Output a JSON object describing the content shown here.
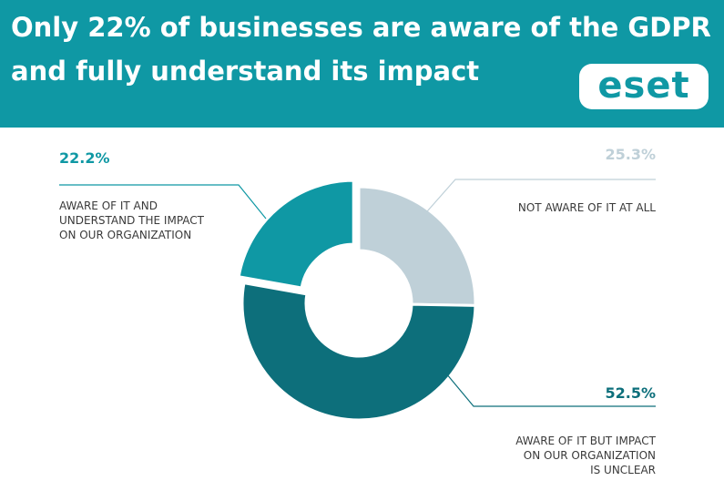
{
  "chart_data": {
    "type": "donut",
    "title": "Only 22% of businesses are aware of the GDPR\nand fully understand its impact",
    "logo": "eset",
    "categories": [
      "NOT AWARE OF IT AT ALL",
      "AWARE OF IT BUT IMPACT\nON OUR ORGANIZATION\nIS UNCLEAR",
      "AWARE OF IT AND\nUNDERSTAND THE IMPACT\nON OUR ORGANIZATION"
    ],
    "values": [
      25.3,
      52.5,
      22.2
    ],
    "value_labels": [
      "25.3%",
      "52.5%",
      "22.2%"
    ],
    "colors": [
      "#bfd0d8",
      "#0d6f7b",
      "#0f98a4"
    ]
  }
}
